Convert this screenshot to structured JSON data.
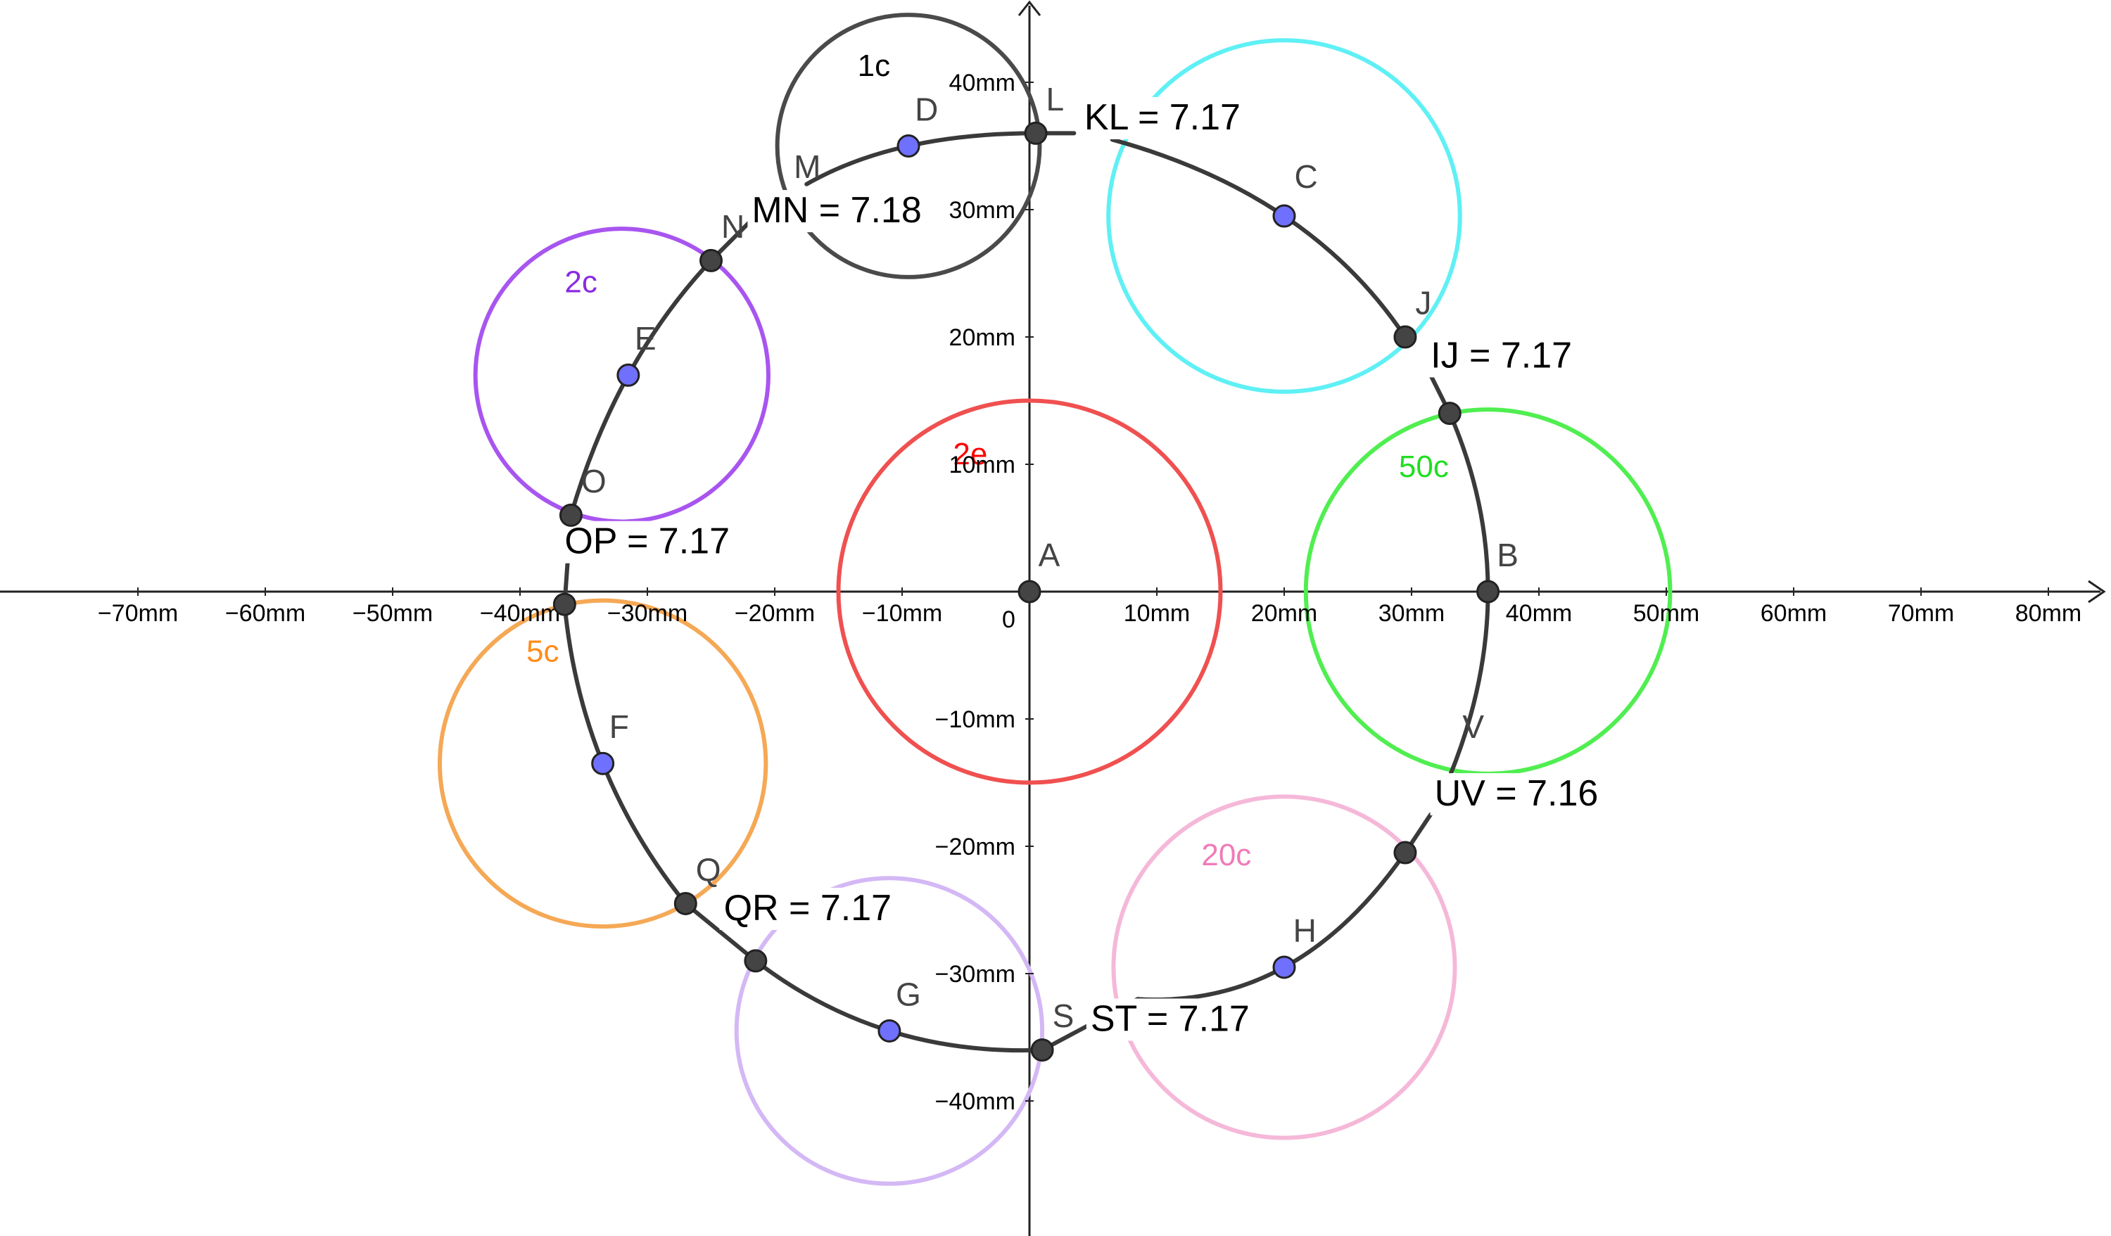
{
  "axes": {
    "x_ticks": [
      {
        "value": -70,
        "label": "−70mm"
      },
      {
        "value": -60,
        "label": "−60mm"
      },
      {
        "value": -50,
        "label": "−50mm"
      },
      {
        "value": -40,
        "label": "−40mm"
      },
      {
        "value": -30,
        "label": "−30mm"
      },
      {
        "value": -20,
        "label": "−20mm"
      },
      {
        "value": -10,
        "label": "−10mm"
      },
      {
        "value": 10,
        "label": "10mm"
      },
      {
        "value": 20,
        "label": "20mm"
      },
      {
        "value": 30,
        "label": "30mm"
      },
      {
        "value": 40,
        "label": "40mm"
      },
      {
        "value": 50,
        "label": "50mm"
      },
      {
        "value": 60,
        "label": "60mm"
      },
      {
        "value": 70,
        "label": "70mm"
      },
      {
        "value": 80,
        "label": "80mm"
      }
    ],
    "y_ticks": [
      {
        "value": 40,
        "label": "40mm"
      },
      {
        "value": 30,
        "label": "30mm"
      },
      {
        "value": 20,
        "label": "20mm"
      },
      {
        "value": 10,
        "label": "10mm"
      },
      {
        "value": -10,
        "label": "−10mm"
      },
      {
        "value": -20,
        "label": "−20mm"
      },
      {
        "value": -30,
        "label": "−30mm"
      },
      {
        "value": -40,
        "label": "−40mm"
      }
    ],
    "origin_label": "0"
  },
  "circles": [
    {
      "id": "2e",
      "label": "2e",
      "cx": 0,
      "cy": 0,
      "r": 15,
      "color": "#f05050",
      "label_color": "#ff0000",
      "lx": -6,
      "ly": 10
    },
    {
      "id": "1c",
      "label": "1c",
      "cx": -9.5,
      "cy": 35,
      "r": 10.3,
      "color": "#4a4a4a",
      "label_color": "#000000",
      "lx": -13.5,
      "ly": 40.5
    },
    {
      "id": "10c",
      "label": "",
      "cx": 20,
      "cy": 29.5,
      "r": 13.8,
      "color": "#5ff0f5",
      "label_color": "#00ccff",
      "lx": 0,
      "ly": 0
    },
    {
      "id": "2c",
      "label": "2c",
      "cx": -32,
      "cy": 17,
      "r": 11.5,
      "color": "#a855f0",
      "label_color": "#8a2be2",
      "lx": -36.5,
      "ly": 23.5
    },
    {
      "id": "50c",
      "label": "50c",
      "cx": 36,
      "cy": 0,
      "r": 14.3,
      "color": "#50ee50",
      "label_color": "#22dd22",
      "lx": 29,
      "ly": 9
    },
    {
      "id": "5c",
      "label": "5c",
      "cx": -33.5,
      "cy": -13.5,
      "r": 12.8,
      "color": "#f5a855",
      "label_color": "#ff8c1a",
      "lx": -39.5,
      "ly": -5.5
    },
    {
      "id": "10c-b",
      "label": "",
      "cx": -11,
      "cy": -34.5,
      "r": 12,
      "color": "#d4b8f5",
      "label_color": "#b88cf0",
      "lx": 0,
      "ly": 0
    },
    {
      "id": "20c",
      "label": "20c",
      "cx": 20,
      "cy": -29.5,
      "r": 13.4,
      "color": "#f5b8d8",
      "label_color": "#f07ab8",
      "lx": 13.5,
      "ly": -21.5
    }
  ],
  "points": [
    {
      "name": "A",
      "x": 0,
      "y": 0,
      "fill": "#444444",
      "text_color": "#444444",
      "dx": 0.7,
      "dy": 2
    },
    {
      "name": "B",
      "x": 36,
      "y": 0,
      "fill": "#444444",
      "text_color": "#444444",
      "dx": 0.7,
      "dy": 2
    },
    {
      "name": "C",
      "x": 20,
      "y": 29.5,
      "fill": "#7070ff",
      "text_color": "#7070ff",
      "dx": 0.8,
      "dy": 2.2
    },
    {
      "name": "D",
      "x": -9.5,
      "y": 35,
      "fill": "#7070ff",
      "text_color": "#7070ff",
      "dx": 0.5,
      "dy": 2
    },
    {
      "name": "E",
      "x": -31.5,
      "y": 17,
      "fill": "#7070ff",
      "text_color": "#7070ff",
      "dx": 0.5,
      "dy": 2
    },
    {
      "name": "F",
      "x": -33.5,
      "y": -13.5,
      "fill": "#7070ff",
      "text_color": "#7070ff",
      "dx": 0.5,
      "dy": 2
    },
    {
      "name": "G",
      "x": -11,
      "y": -34.5,
      "fill": "#7070ff",
      "text_color": "#7070ff",
      "dx": 0.5,
      "dy": 2
    },
    {
      "name": "H",
      "x": 20,
      "y": -29.5,
      "fill": "#7070ff",
      "text_color": "#7070ff",
      "dx": 0.7,
      "dy": 2
    },
    {
      "name": "J",
      "x": 29.5,
      "y": 20,
      "fill": "#444444",
      "text_color": "#444444",
      "dx": 0.8,
      "dy": 1.8
    },
    {
      "name": "L",
      "x": 0.5,
      "y": 36,
      "fill": "#444444",
      "text_color": "#444444",
      "dx": 0.8,
      "dy": 1.8
    },
    {
      "name": "N",
      "x": -25,
      "y": 26,
      "fill": "#444444",
      "text_color": "#444444",
      "dx": 0.8,
      "dy": 1.8
    },
    {
      "name": "O",
      "x": -36,
      "y": 6,
      "fill": "#444444",
      "text_color": "#444444",
      "dx": 0.8,
      "dy": 1.8
    },
    {
      "name": "",
      "x": -36.5,
      "y": -1,
      "fill": "#444444",
      "text_color": "#444444",
      "dx": 0,
      "dy": 0
    },
    {
      "name": "Q",
      "x": -27,
      "y": -24.5,
      "fill": "#444444",
      "text_color": "#444444",
      "dx": 0.8,
      "dy": 1.8
    },
    {
      "name": "",
      "x": -21.5,
      "y": -29,
      "fill": "#444444",
      "text_color": "#444444",
      "dx": 0,
      "dy": 0
    },
    {
      "name": "S",
      "x": 1,
      "y": -36,
      "fill": "#444444",
      "text_color": "#444444",
      "dx": 0.8,
      "dy": 1.8
    },
    {
      "name": "",
      "x": 29.5,
      "y": -20.5,
      "fill": "#444444",
      "text_color": "#444444",
      "dx": 0,
      "dy": 0
    },
    {
      "name": "",
      "x": 33,
      "y": 14,
      "fill": "#444444",
      "text_color": "#444444",
      "dx": 0,
      "dy": 0
    }
  ],
  "static_labels": [
    {
      "text": "M",
      "x": -18.5,
      "y": 32.5,
      "color": "#444444"
    },
    {
      "text": "V",
      "x": 34,
      "y": -11.5,
      "color": "#444444"
    }
  ],
  "arcs": [
    {
      "name": "arc-L-D-M",
      "points": [
        [
          0.5,
          36
        ],
        [
          -9.5,
          35
        ],
        [
          -17.5,
          32
        ]
      ]
    },
    {
      "name": "arc-N-E-O",
      "points": [
        [
          -25,
          26
        ],
        [
          -31.5,
          17
        ],
        [
          -36,
          6
        ]
      ]
    },
    {
      "name": "arc-P-F-Q",
      "points": [
        [
          -36.5,
          -1
        ],
        [
          -33.5,
          -13.5
        ],
        [
          -27,
          -24.5
        ]
      ]
    },
    {
      "name": "arc-R-G-S",
      "points": [
        [
          -21.5,
          -29
        ],
        [
          -11,
          -34.5
        ],
        [
          1,
          -36
        ]
      ]
    },
    {
      "name": "arc-T-H-U",
      "points": [
        [
          8.5,
          -32
        ],
        [
          20,
          -29.5
        ],
        [
          29.5,
          -20.5
        ]
      ]
    },
    {
      "name": "arc-V-B-I",
      "points": [
        [
          33,
          -14.5
        ],
        [
          36,
          0
        ],
        [
          33,
          14
        ]
      ]
    },
    {
      "name": "arc-J-C-K",
      "points": [
        [
          29.5,
          20
        ],
        [
          20,
          29.5
        ],
        [
          6.5,
          35.5
        ]
      ]
    },
    {
      "name": "seg-I-J",
      "points": [
        [
          33,
          14
        ],
        [
          31.5,
          17
        ]
      ]
    },
    {
      "name": "seg-O-P",
      "points": [
        [
          -36,
          6
        ],
        [
          -36.5,
          -1
        ]
      ]
    },
    {
      "name": "seg-Q-R",
      "points": [
        [
          -27,
          -24.5
        ],
        [
          -21.5,
          -29
        ]
      ]
    },
    {
      "name": "seg-S-T",
      "points": [
        [
          1,
          -36
        ],
        [
          8.5,
          -32
        ]
      ]
    },
    {
      "name": "seg-U-V",
      "points": [
        [
          29.5,
          -20.5
        ],
        [
          31.5,
          -17.5
        ]
      ]
    },
    {
      "name": "seg-K-L",
      "points": [
        [
          0.5,
          36
        ],
        [
          3.5,
          36
        ]
      ]
    },
    {
      "name": "seg-M-N",
      "points": [
        [
          -21,
          30
        ],
        [
          -25,
          26
        ]
      ]
    }
  ],
  "measurements": [
    {
      "text": "KL = 7.17",
      "x": 4.3,
      "y": 36.3
    },
    {
      "text": "MN = 7.18",
      "x": -21.8,
      "y": 29
    },
    {
      "text": "IJ = 7.17",
      "x": 31.5,
      "y": 17.6
    },
    {
      "text": "OP = 7.17",
      "x": -36.5,
      "y": 3
    },
    {
      "text": "QR = 7.17",
      "x": -24,
      "y": -25.8
    },
    {
      "text": "ST = 7.17",
      "x": 4.8,
      "y": -34.5
    },
    {
      "text": "UV = 7.16",
      "x": 31.8,
      "y": -16.8
    }
  ]
}
